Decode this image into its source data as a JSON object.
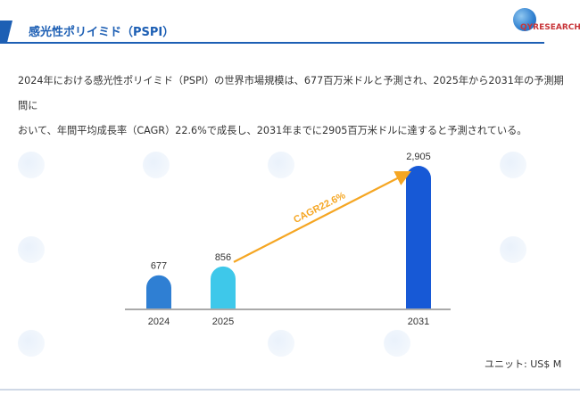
{
  "header": {
    "title": "感光性ポリイミド（PSPI）",
    "logo_text": "QYRESEARCH"
  },
  "description": "2024年における感光性ポリイミド（PSPI）の世界市場規模は、677百万米ドルと予測され、2025年から2031年の予測期間に\nおいて、年間平均成長率（CAGR）22.6%で成長し、2031年までに2905百万米ドルに達すると予測されている。",
  "unit_label": "ユニット: US$ M",
  "colors": {
    "accent": "#1d5fb4",
    "bar_2024": "#2f7fd3",
    "bar_2025": "#3ec8ea",
    "bar_2031": "#1759d6",
    "cagr_arrow": "#f5a623"
  },
  "chart_data": {
    "type": "bar",
    "categories": [
      "2024",
      "2025",
      "2031"
    ],
    "values": [
      677,
      856,
      2905
    ],
    "data_labels": [
      "677",
      "856",
      "2,905"
    ],
    "annotation": "CAGR22.6%",
    "title": "",
    "xlabel": "",
    "ylabel": "",
    "grid": false,
    "legend": "none"
  }
}
